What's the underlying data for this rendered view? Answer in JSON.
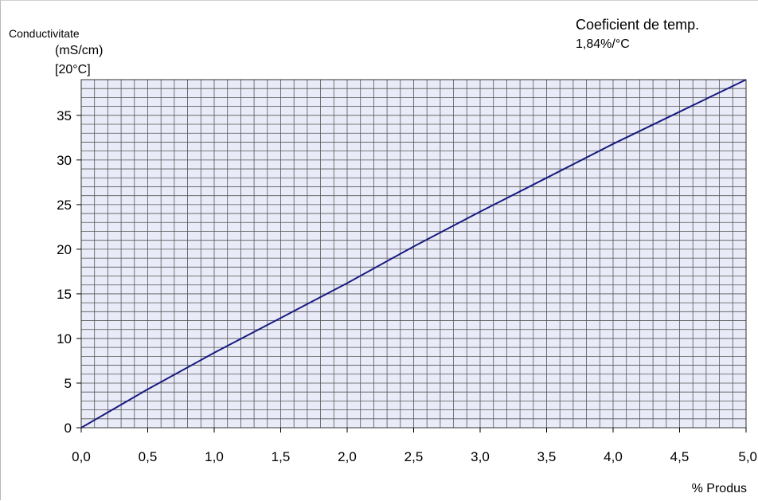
{
  "chart_data": {
    "type": "line",
    "ylabel_lines": [
      "Conductivitate",
      "(mS/cm)",
      "[20°C]"
    ],
    "annotation_lines": [
      "Coeficient de temp.",
      "1,84%/°C"
    ],
    "xlabel": "% Produs",
    "xlim": [
      0,
      5
    ],
    "ylim": [
      0,
      39
    ],
    "x_ticks": [
      0,
      0.5,
      1.0,
      1.5,
      2.0,
      2.5,
      3.0,
      3.5,
      4.0,
      4.5,
      5.0
    ],
    "x_tick_labels": [
      "0,0",
      "0,5",
      "1,0",
      "1,5",
      "2,0",
      "2,5",
      "3,0",
      "3,5",
      "4,0",
      "4,5",
      "5,0"
    ],
    "y_ticks": [
      0,
      5,
      10,
      15,
      20,
      25,
      30,
      35
    ],
    "y_tick_labels": [
      "0",
      "5",
      "10",
      "15",
      "20",
      "25",
      "30",
      "35"
    ],
    "grid": true,
    "series": [
      {
        "x": [
          0,
          0.5,
          1.0,
          1.5,
          2.0,
          2.5,
          3.0,
          3.5,
          4.0,
          4.5,
          5.0
        ],
        "y": [
          0,
          4.3,
          8.4,
          12.3,
          16.2,
          20.3,
          24.2,
          28.0,
          31.8,
          35.4,
          39.0
        ],
        "color": "#1a1a80"
      }
    ],
    "colors": {
      "plot_bg": "#e9ecf8",
      "grid": "#555555",
      "line": "#1a1a80"
    }
  }
}
